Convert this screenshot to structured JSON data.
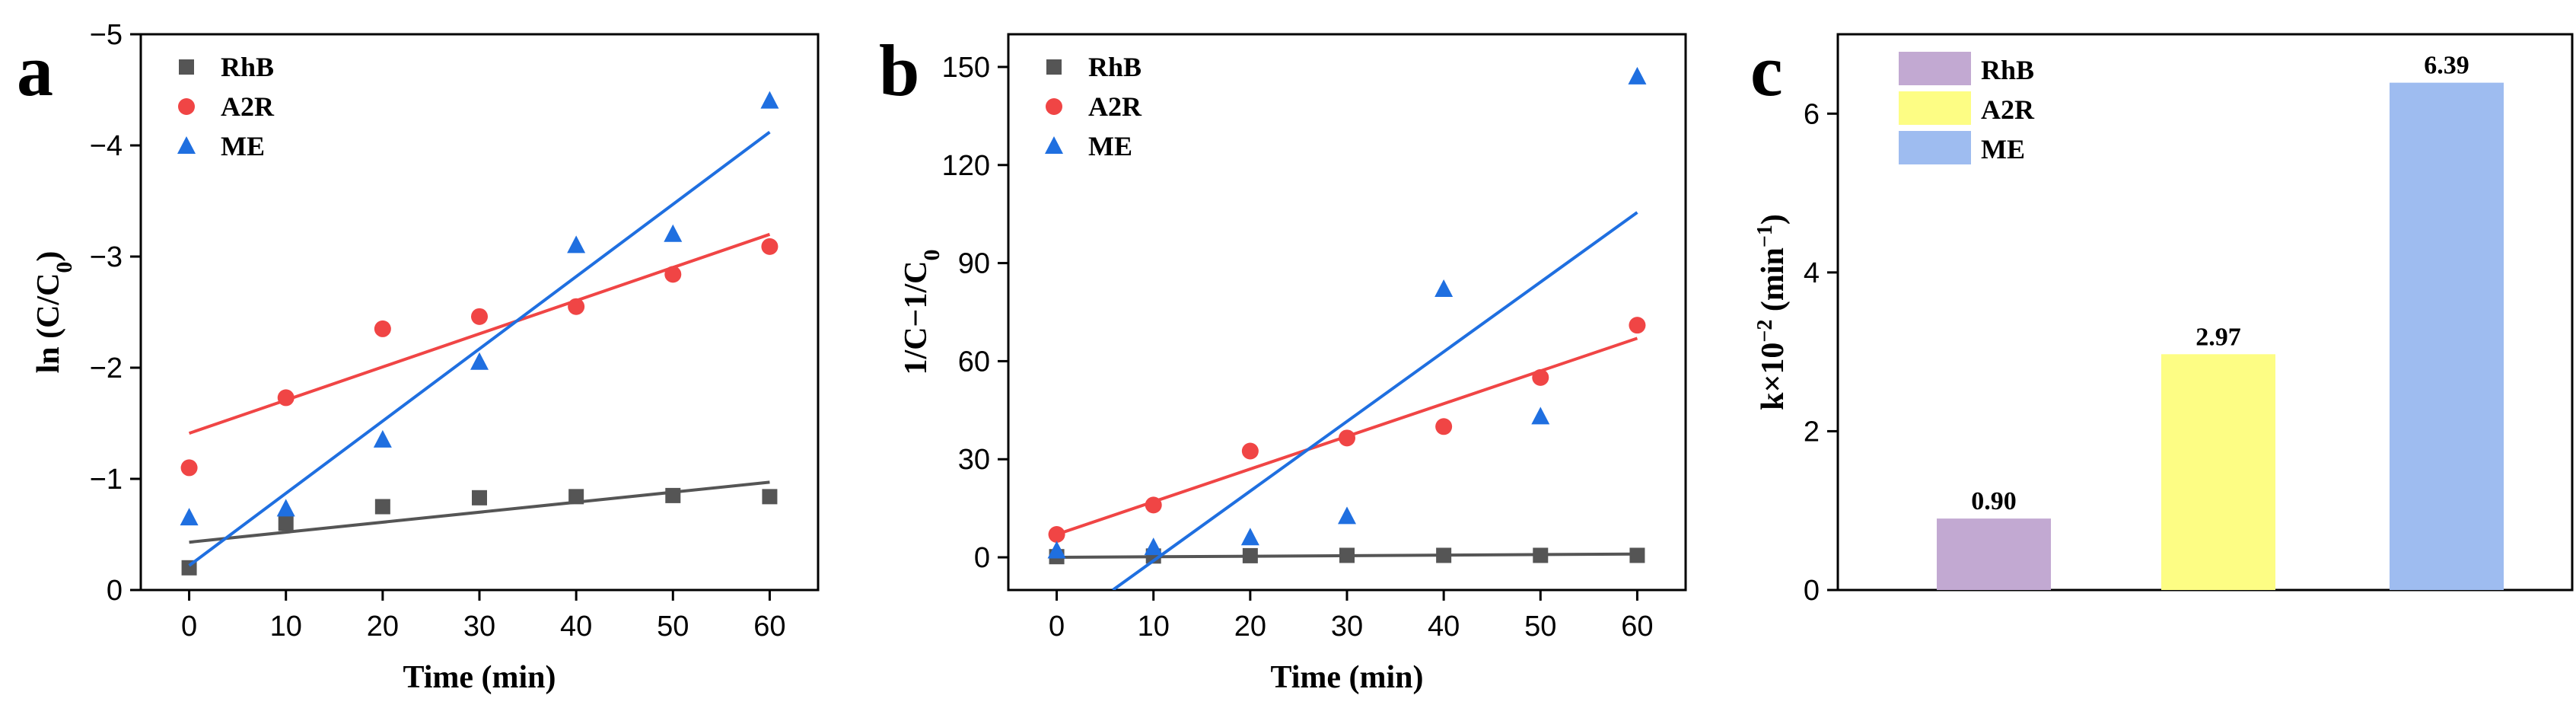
{
  "colors": {
    "RhB": "#555555",
    "A2R": "#f04545",
    "ME": "#1f6fe0",
    "bar_RhB": "#c2a9d2",
    "bar_A2R": "#fdfd84",
    "bar_ME": "#9ebcf0"
  },
  "chart_data": [
    {
      "panel": "a",
      "type": "scatter",
      "xlabel": "Time (min)",
      "ylabel": "ln (C/C0)",
      "ylabel_main": "ln (C/C",
      "ylabel_sub": "0",
      "ylabel_end": ")",
      "xlim": [
        -5,
        65
      ],
      "ylim": [
        0,
        -5
      ],
      "xticks": [
        0,
        10,
        20,
        30,
        40,
        50,
        60
      ],
      "xtick_labels": [
        "0",
        "10",
        "20",
        "30",
        "40",
        "50",
        "60"
      ],
      "yticks": [
        0,
        -1,
        -2,
        -3,
        -4,
        -5
      ],
      "ytick_labels": [
        "0",
        "−1",
        "−2",
        "−3",
        "−4",
        "−5"
      ],
      "legend": [
        "RhB",
        "A2R",
        "ME"
      ],
      "series": [
        {
          "name": "RhB",
          "marker": "square",
          "x": [
            0,
            10,
            20,
            30,
            40,
            50,
            60
          ],
          "y": [
            -0.2,
            -0.6,
            -0.75,
            -0.83,
            -0.84,
            -0.85,
            -0.84
          ],
          "fit": [
            [
              0,
              -0.43
            ],
            [
              60,
              -0.97
            ]
          ]
        },
        {
          "name": "A2R",
          "marker": "circle",
          "x": [
            0,
            10,
            20,
            30,
            40,
            50,
            60
          ],
          "y": [
            -1.1,
            -1.73,
            -2.35,
            -2.46,
            -2.55,
            -2.84,
            -3.09
          ],
          "fit": [
            [
              0,
              -1.41
            ],
            [
              60,
              -3.2
            ]
          ]
        },
        {
          "name": "ME",
          "marker": "triangle",
          "x": [
            0,
            10,
            20,
            30,
            40,
            50,
            60
          ],
          "y": [
            -0.65,
            -0.73,
            -1.35,
            -2.05,
            -3.1,
            -3.2,
            -4.4
          ],
          "fit": [
            [
              0,
              -0.22
            ],
            [
              60,
              -4.12
            ]
          ]
        }
      ]
    },
    {
      "panel": "b",
      "type": "scatter",
      "xlabel": "Time (min)",
      "ylabel": "1/C−1/C0",
      "ylabel_main": "1/C−1/C",
      "ylabel_sub": "0",
      "ylabel_end": "",
      "xlim": [
        -5,
        65
      ],
      "ylim": [
        -10,
        160
      ],
      "xticks": [
        0,
        10,
        20,
        30,
        40,
        50,
        60
      ],
      "xtick_labels": [
        "0",
        "10",
        "20",
        "30",
        "40",
        "50",
        "60"
      ],
      "yticks": [
        0,
        30,
        60,
        90,
        120,
        150
      ],
      "ytick_labels": [
        "0",
        "30",
        "60",
        "90",
        "120",
        "150"
      ],
      "legend": [
        "RhB",
        "A2R",
        "ME"
      ],
      "series": [
        {
          "name": "RhB",
          "marker": "square",
          "x": [
            0,
            10,
            20,
            30,
            40,
            50,
            60
          ],
          "y": [
            0.2,
            0.4,
            0.5,
            0.6,
            0.6,
            0.6,
            0.6
          ],
          "fit": [
            [
              0,
              0
            ],
            [
              60,
              1
            ]
          ]
        },
        {
          "name": "A2R",
          "marker": "circle",
          "x": [
            0,
            10,
            20,
            30,
            40,
            50,
            60
          ],
          "y": [
            7,
            16,
            32.5,
            36.5,
            40,
            55,
            71
          ],
          "fit": [
            [
              0,
              7
            ],
            [
              60,
              67
            ]
          ]
        },
        {
          "name": "ME",
          "marker": "triangle",
          "x": [
            0,
            10,
            20,
            30,
            40,
            50,
            60
          ],
          "y": [
            2,
            3,
            6,
            12.5,
            82,
            43,
            147
          ],
          "fit": [
            [
              5.8,
              -10
            ],
            [
              60,
              105.5
            ]
          ]
        }
      ]
    },
    {
      "panel": "c",
      "type": "bar",
      "xlabel": "",
      "ylabel": "k×10−2 (min−1)",
      "ylim": [
        0,
        7
      ],
      "yticks": [
        0,
        2,
        4,
        6
      ],
      "ytick_labels": [
        "0",
        "2",
        "4",
        "6"
      ],
      "categories": [
        "RhB",
        "A2R",
        "ME"
      ],
      "values": [
        0.9,
        2.97,
        6.39
      ],
      "value_labels": [
        "0.90",
        "2.97",
        "6.39"
      ],
      "legend": [
        "RhB",
        "A2R",
        "ME"
      ]
    }
  ]
}
